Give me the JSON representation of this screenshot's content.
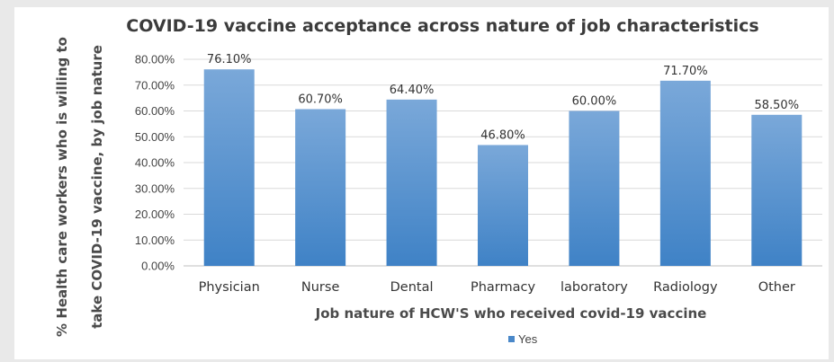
{
  "chart_data": {
    "type": "bar",
    "title": "COVID-19 vaccine acceptance across nature of job characteristics",
    "xlabel": "Job nature of HCW'S who received covid-19 vaccine",
    "ylabel_lines": [
      "% Health care workers who is willing to",
      "take COVID-19 vaccine, by job nature"
    ],
    "categories": [
      "Physician",
      "Nurse",
      "Dental",
      "Pharmacy",
      "laboratory",
      "Radiology",
      "Other"
    ],
    "series": [
      {
        "name": "Yes",
        "values": [
          76.1,
          60.7,
          64.4,
          46.8,
          60.0,
          71.7,
          58.5
        ],
        "labels": [
          "76.10%",
          "60.70%",
          "64.40%",
          "46.80%",
          "60.00%",
          "71.70%",
          "58.50%"
        ]
      }
    ],
    "ylim": [
      0,
      80
    ],
    "yticks": [
      "0.00%",
      "10.00%",
      "20.00%",
      "30.00%",
      "40.00%",
      "50.00%",
      "60.00%",
      "70.00%",
      "80.00%"
    ],
    "grid": true,
    "legend_position": "bottom",
    "colors": {
      "bar_top": "#7aa8d9",
      "bar_bottom": "#3f82c6",
      "legend_swatch": "#4a88c9"
    }
  }
}
